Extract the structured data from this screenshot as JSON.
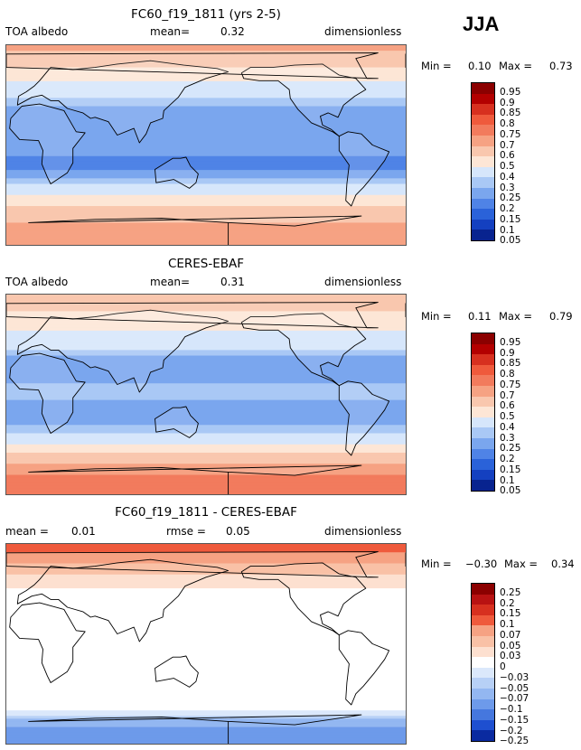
{
  "season": "JJA",
  "panels": [
    {
      "title": "FC60_f19_1811 (yrs 2-5)",
      "left": "TOA albedo",
      "mid_label": "mean=",
      "mid_value": "0.32",
      "right": "dimensionless",
      "min_label": "Min =",
      "min_value": "0.10",
      "max_label": "Max =",
      "max_value": "0.73",
      "colorbar_labels": [
        "0.95",
        "0.9",
        "0.85",
        "0.8",
        "0.75",
        "0.7",
        "0.6",
        "0.5",
        "0.4",
        "0.3",
        "0.25",
        "0.2",
        "0.15",
        "0.1",
        "0.05"
      ]
    },
    {
      "title": "CERES-EBAF",
      "left": "TOA albedo",
      "mid_label": "mean=",
      "mid_value": "0.31",
      "right": "dimensionless",
      "min_label": "Min =",
      "min_value": "0.11",
      "max_label": "Max =",
      "max_value": "0.79",
      "colorbar_labels": [
        "0.95",
        "0.9",
        "0.85",
        "0.8",
        "0.75",
        "0.7",
        "0.6",
        "0.5",
        "0.4",
        "0.3",
        "0.25",
        "0.2",
        "0.15",
        "0.1",
        "0.05"
      ]
    },
    {
      "title": "FC60_f19_1811 - CERES-EBAF",
      "left_label": "mean =",
      "left_value": "0.01",
      "mid_label": "rmse =",
      "mid_value": "0.05",
      "right": "dimensionless",
      "min_label": "Min =",
      "min_value": "−0.30",
      "max_label": "Max =",
      "max_value": "0.34",
      "colorbar_labels": [
        "0.25",
        "0.2",
        "0.15",
        "0.1",
        "0.07",
        "0.05",
        "0.03",
        "0",
        "−0.03",
        "−0.05",
        "−0.07",
        "−0.1",
        "−0.15",
        "−0.2",
        "−0.25"
      ]
    }
  ],
  "chart_data": [
    {
      "type": "heatmap",
      "title": "FC60_f19_1811 (yrs 2-5)",
      "variable": "TOA albedo",
      "units": "dimensionless",
      "mean": 0.32,
      "min": 0.1,
      "max": 0.73,
      "levels": [
        0.05,
        0.1,
        0.15,
        0.2,
        0.25,
        0.3,
        0.4,
        0.5,
        0.6,
        0.7,
        0.75,
        0.8,
        0.85,
        0.9,
        0.95
      ],
      "lat_band_albedo": {
        "90": 0.62,
        "75": 0.55,
        "60": 0.42,
        "45": 0.33,
        "30": 0.2,
        "15": 0.22,
        "0": 0.25,
        "-15": 0.17,
        "-30": 0.24,
        "-45": 0.4,
        "-60": 0.55,
        "-75": 0.62,
        "-90": 0.6
      }
    },
    {
      "type": "heatmap",
      "title": "CERES-EBAF",
      "variable": "TOA albedo",
      "units": "dimensionless",
      "mean": 0.31,
      "min": 0.11,
      "max": 0.79,
      "levels": [
        0.05,
        0.1,
        0.15,
        0.2,
        0.25,
        0.3,
        0.4,
        0.5,
        0.6,
        0.7,
        0.75,
        0.8,
        0.85,
        0.9,
        0.95
      ],
      "lat_band_albedo": {
        "90": 0.55,
        "75": 0.5,
        "60": 0.42,
        "45": 0.34,
        "30": 0.22,
        "15": 0.24,
        "0": 0.27,
        "-15": 0.2,
        "-30": 0.26,
        "-45": 0.4,
        "-60": 0.58,
        "-75": 0.72,
        "-90": 0.7
      }
    },
    {
      "type": "heatmap",
      "title": "FC60_f19_1811 - CERES-EBAF",
      "units": "dimensionless",
      "mean": 0.01,
      "rmse": 0.05,
      "min": -0.3,
      "max": 0.34,
      "levels": [
        -0.25,
        -0.2,
        -0.15,
        -0.1,
        -0.07,
        -0.05,
        -0.03,
        0,
        0.03,
        0.05,
        0.07,
        0.1,
        0.15,
        0.2,
        0.25
      ],
      "lat_band_diff": {
        "90": 0.08,
        "75": 0.06,
        "60": 0.02,
        "45": -0.01,
        "30": -0.02,
        "15": -0.02,
        "0": -0.02,
        "-15": -0.03,
        "-30": -0.01,
        "-45": 0.0,
        "-60": -0.03,
        "-75": -0.1,
        "-90": -0.1
      }
    }
  ]
}
